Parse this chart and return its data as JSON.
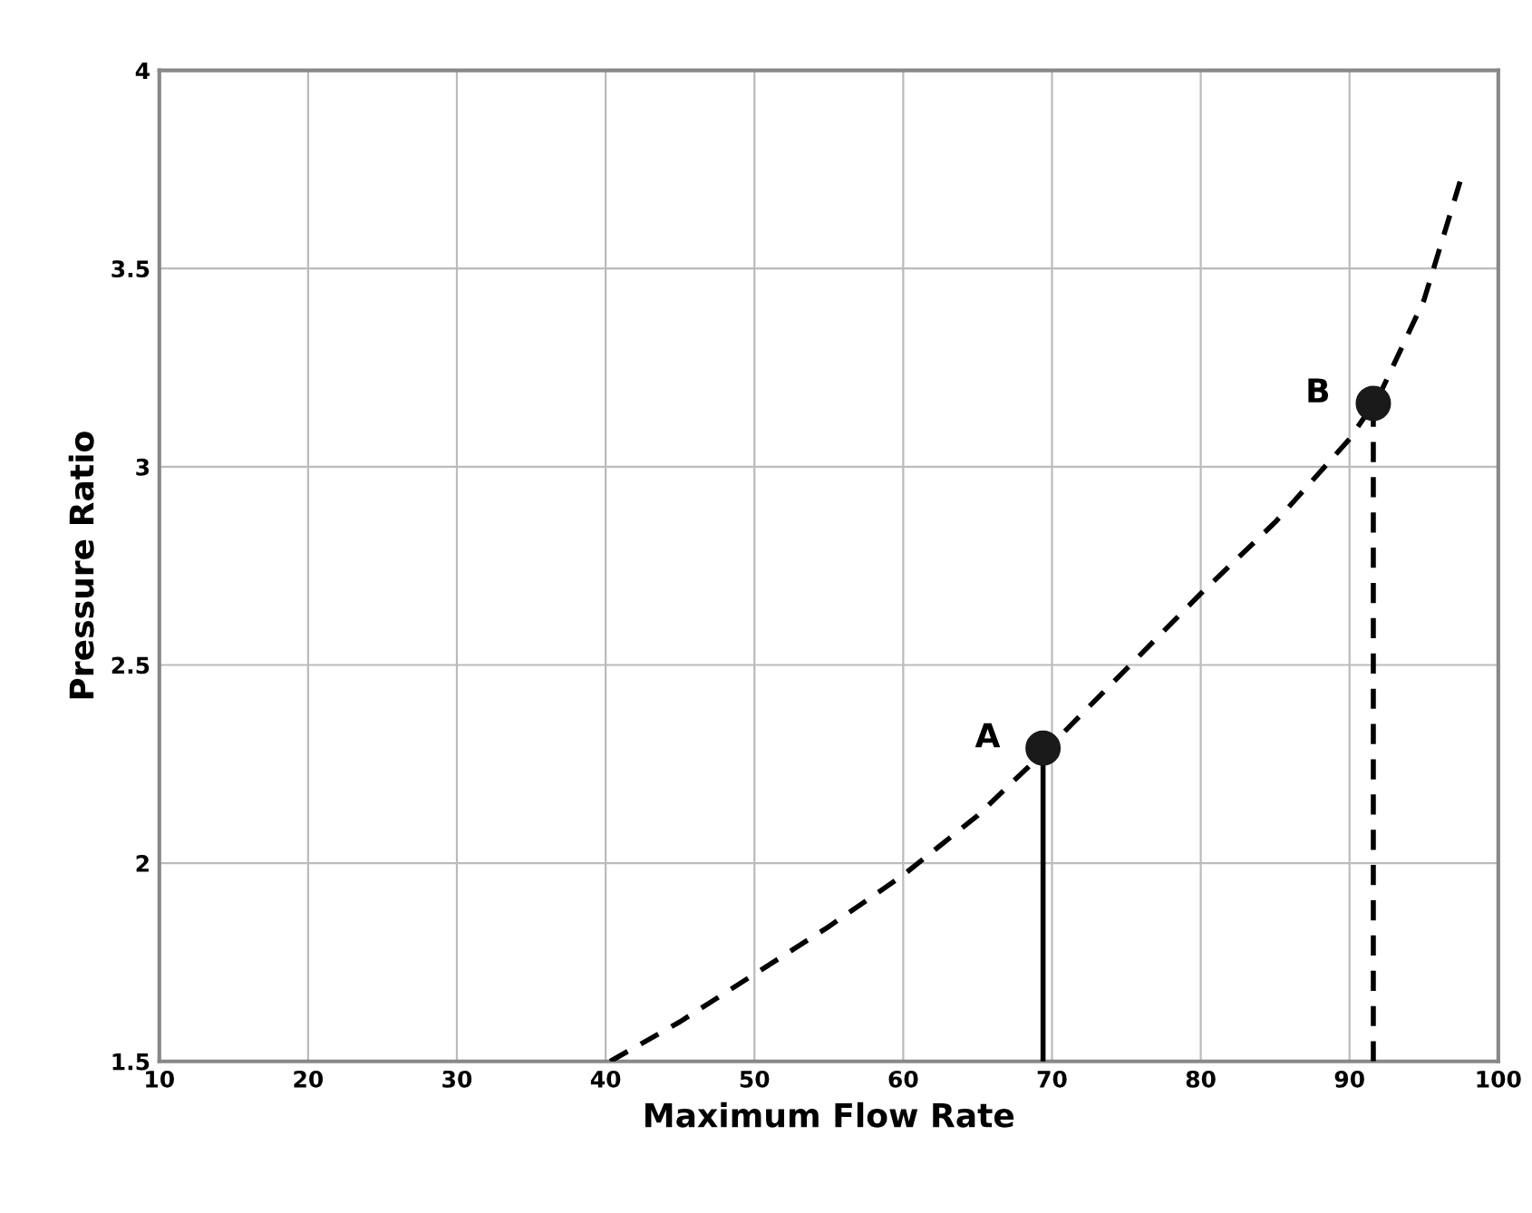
{
  "chart_data": {
    "type": "line",
    "xlabel": "Maximum Flow Rate",
    "ylabel": "Pressure Ratio",
    "xlim": [
      10,
      100
    ],
    "ylim": [
      1.5,
      4
    ],
    "xticks": [
      10,
      20,
      30,
      40,
      50,
      60,
      70,
      80,
      90,
      100
    ],
    "yticks": [
      1.5,
      2,
      2.5,
      3,
      3.5,
      4
    ],
    "grid": true,
    "series": [
      {
        "line_style": "dashed",
        "color": "#000000",
        "x": [
          40.3,
          45,
          50,
          55,
          60,
          65,
          70,
          75,
          80,
          85,
          90,
          92,
          95,
          97.6
        ],
        "values": [
          1.5,
          1.6,
          1.72,
          1.84,
          1.97,
          2.12,
          2.3,
          2.49,
          2.68,
          2.86,
          3.07,
          3.18,
          3.42,
          3.74
        ]
      },
      {
        "type": "line",
        "line_style": "solid",
        "color": "#000000",
        "x": [
          69.4,
          69.4
        ],
        "values": [
          1.5,
          2.29
        ]
      },
      {
        "type": "line",
        "line_style": "dashed",
        "color": "#000000",
        "x": [
          91.6,
          91.6
        ],
        "values": [
          1.5,
          3.16
        ]
      },
      {
        "type": "scatter",
        "marker": "circle",
        "color": "#1a1a1a",
        "x": [
          69.4,
          91.6
        ],
        "values": [
          2.29,
          3.16
        ]
      }
    ],
    "annotations": [
      {
        "text": "A",
        "x": 69.4,
        "y": 2.29
      },
      {
        "text": "B",
        "x": 91.6,
        "y": 3.16
      }
    ]
  }
}
